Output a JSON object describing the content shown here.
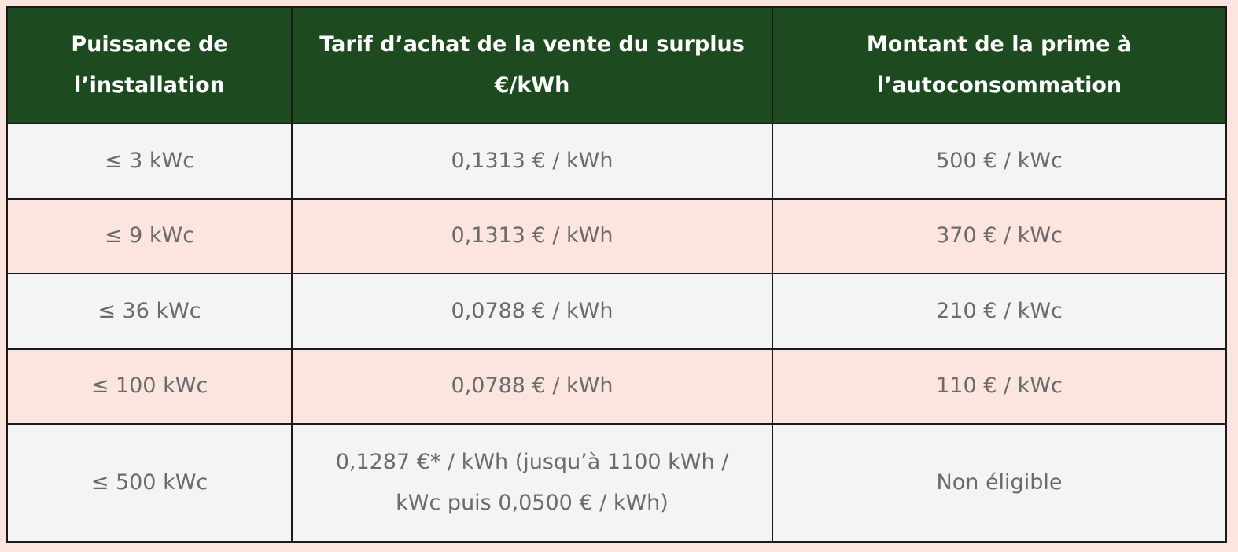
{
  "table": {
    "headers": [
      "Puissance de l’installation",
      "Tarif d’achat de la vente du surplus €/kWh",
      "Montant de la prime à l’autoconsommation"
    ],
    "rows": [
      [
        "≤ 3 kWc",
        "0,1313 € / kWh",
        "500 € / kWc"
      ],
      [
        "≤ 9 kWc",
        "0,1313 € / kWh",
        "370 € / kWc"
      ],
      [
        "≤ 36 kWc",
        "0,0788 € / kWh",
        "210 € / kWc"
      ],
      [
        "≤ 100 kWc",
        "0,0788 € / kWh",
        "110 € / kWc"
      ],
      [
        "≤ 500 kWc",
        "0,1287 €* / kWh (jusqu’à 1100 kWh / kWc puis 0,0500 € / kWh)",
        "Non éligible"
      ]
    ]
  }
}
